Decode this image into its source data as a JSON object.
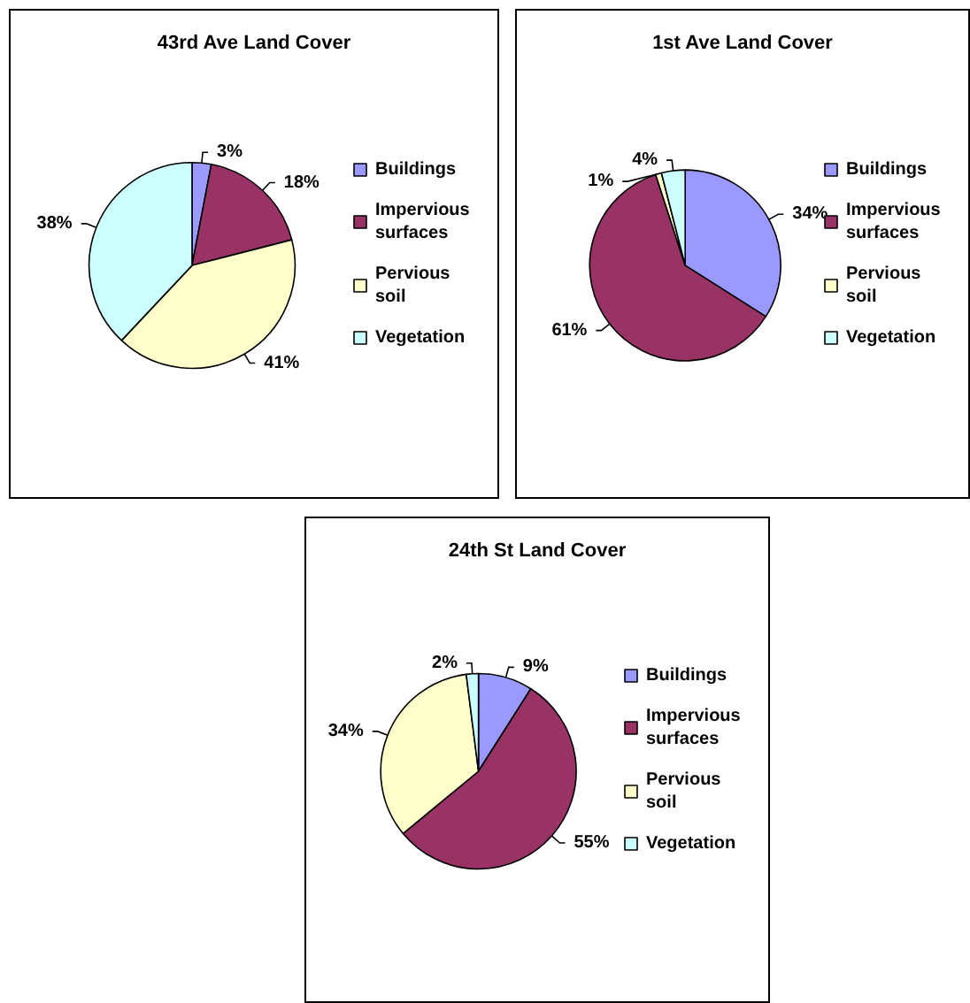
{
  "chart_data": [
    {
      "type": "pie",
      "title": "43rd Ave Land Cover",
      "categories": [
        "Buildings",
        "Impervious surfaces",
        "Pervious soil",
        "Vegetation"
      ],
      "values": [
        3,
        18,
        41,
        38
      ],
      "value_labels": [
        "3%",
        "18%",
        "41%",
        "38%"
      ],
      "colors": [
        "#9999ff",
        "#993366",
        "#ffffcc",
        "#ccffff"
      ],
      "legend": "right"
    },
    {
      "type": "pie",
      "title": "1st Ave Land Cover",
      "categories": [
        "Buildings",
        "Impervious surfaces",
        "Pervious soil",
        "Vegetation"
      ],
      "values": [
        34,
        61,
        1,
        4
      ],
      "value_labels": [
        "34%",
        "61%",
        "1%",
        "4%"
      ],
      "colors": [
        "#9999ff",
        "#993366",
        "#ffffcc",
        "#ccffff"
      ],
      "legend": "right"
    },
    {
      "type": "pie",
      "title": "24th St Land Cover",
      "categories": [
        "Buildings",
        "Impervious surfaces",
        "Pervious soil",
        "Vegetation"
      ],
      "values": [
        9,
        55,
        34,
        2
      ],
      "value_labels": [
        "9%",
        "55%",
        "34%",
        "2%"
      ],
      "colors": [
        "#9999ff",
        "#993366",
        "#ffffcc",
        "#ccffff"
      ],
      "legend": "right"
    }
  ]
}
